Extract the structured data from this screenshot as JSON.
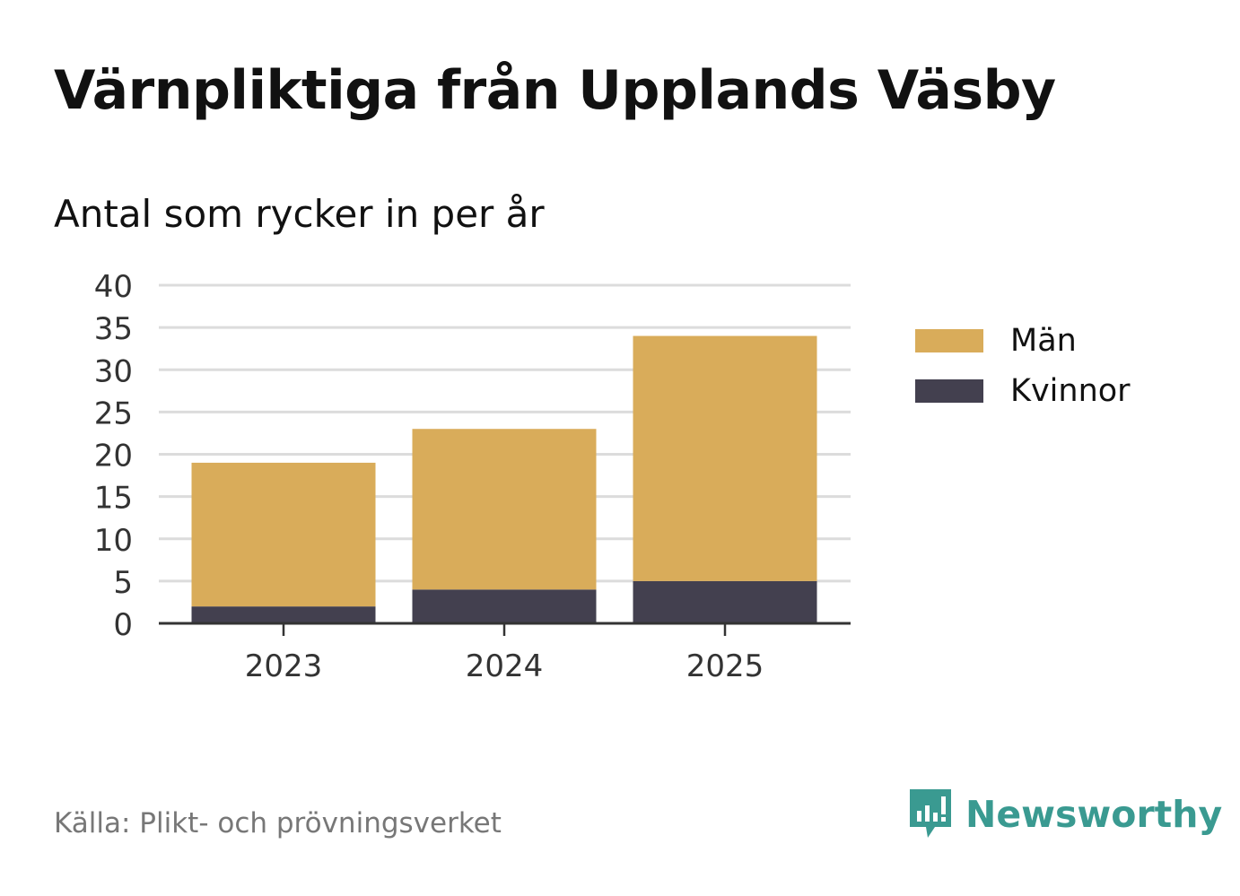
{
  "header": {
    "title": "Värnpliktiga från Upplands Väsby",
    "subtitle": "Antal som rycker in per år"
  },
  "footer": {
    "source": "Källa: Plikt- och prövningsverket",
    "brand": "Newsworthy",
    "brand_icon": "newsworthy-logo-icon"
  },
  "colors": {
    "man": "#d9ac5a",
    "kvinnor": "#43404f",
    "grid": "#dcdcdc",
    "axis": "#333333",
    "brand": "#3a9a91"
  },
  "chart_data": {
    "type": "bar",
    "stacked": true,
    "categories": [
      "2023",
      "2024",
      "2025"
    ],
    "series": [
      {
        "name": "Kvinnor",
        "values": [
          2,
          4,
          5
        ],
        "color": "#43404f"
      },
      {
        "name": "Män",
        "values": [
          17,
          19,
          29
        ],
        "color": "#d9ac5a"
      }
    ],
    "ylim": [
      0,
      40
    ],
    "yticks": [
      0,
      5,
      10,
      15,
      20,
      25,
      30,
      35,
      40
    ],
    "grid": true,
    "legend": {
      "placement": "right",
      "entries": [
        "Män",
        "Kvinnor"
      ]
    }
  }
}
